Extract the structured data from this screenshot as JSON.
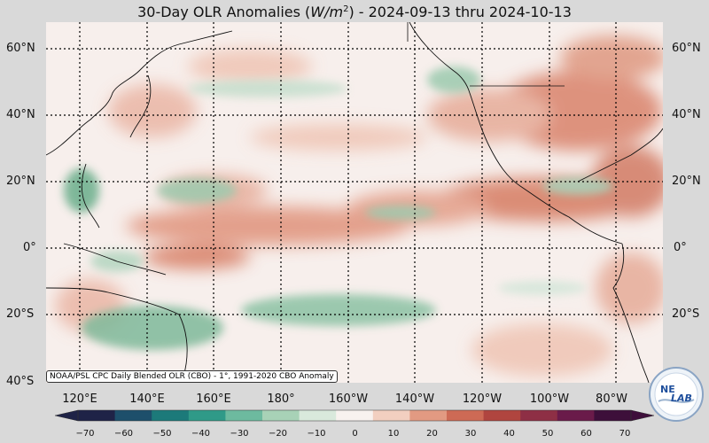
{
  "title": {
    "prefix": "30-Day OLR Anomalies (",
    "unit_base": "W/m",
    "unit_exp": "2",
    "suffix": ") - 2024-09-13 thru 2024-10-13"
  },
  "map": {
    "type": "filled-contour anomaly map",
    "gridlines": true,
    "lat_labels": [
      "60°N",
      "40°N",
      "20°N",
      "0°",
      "20°S",
      "40°S"
    ],
    "lon_labels": [
      "120°E",
      "140°E",
      "160°E",
      "180°",
      "160°W",
      "140°W",
      "120°W",
      "100°W",
      "80°W"
    ],
    "colors": {
      "negative": "#2e8a60",
      "neutral": "#f7efec",
      "positive": "#c8604a",
      "coast": "#111111"
    }
  },
  "source_note": "NOAA/PSL CPC Daily Blended OLR (CBO) - 1°, 1991-2020 CBO Anomaly",
  "colorbar": {
    "ticks": [
      "−70",
      "−60",
      "−50",
      "−40",
      "−30",
      "−20",
      "−10",
      "0",
      "10",
      "20",
      "30",
      "40",
      "50",
      "60",
      "70"
    ],
    "colors": [
      "#1f2347",
      "#1d4f6b",
      "#1c7a7a",
      "#2f9a88",
      "#6dba9f",
      "#a8d2b7",
      "#d9e9dc",
      "#f8f2ef",
      "#f2cfc0",
      "#e29a82",
      "#cd6a55",
      "#b0453f",
      "#8e2f45",
      "#6a1b4a",
      "#3d0f3a"
    ]
  },
  "logo": {
    "text_line1": "NE",
    "text_line2": "LAB"
  }
}
